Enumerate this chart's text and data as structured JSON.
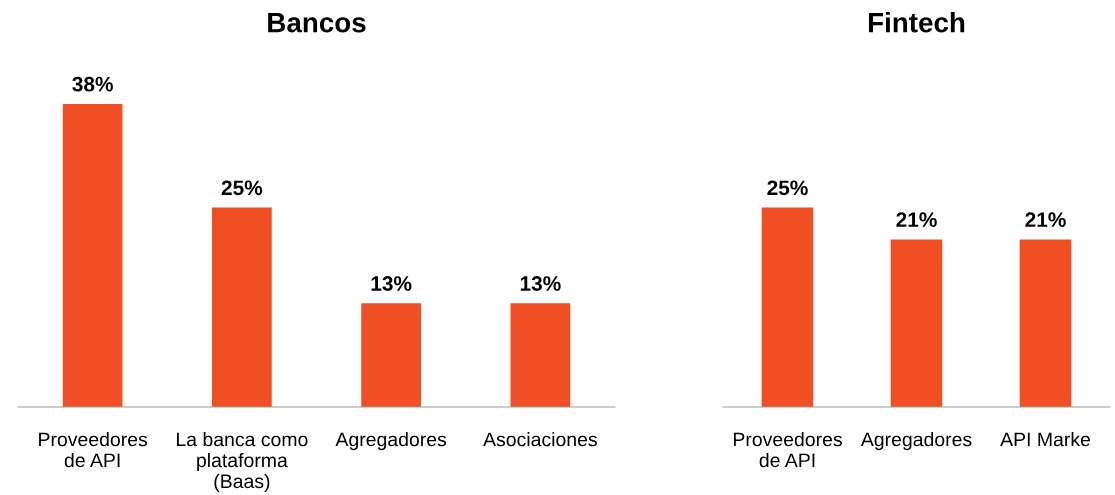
{
  "chart_data": [
    {
      "type": "bar",
      "title": "Bancos",
      "categories": [
        "Proveedores\nde API",
        "La banca como\nplataforma\n(Baas)",
        "Agregadores",
        "Asociaciones"
      ],
      "values": [
        38,
        25,
        13,
        13
      ],
      "value_labels": [
        "38%",
        "25%",
        "13%",
        "13%"
      ],
      "color": "#f04e23",
      "grid": false,
      "legend": false,
      "tick_labels": "x"
    },
    {
      "type": "bar",
      "title": "Fintech",
      "categories": [
        "Proveedores\nde API",
        "Agregadores",
        "API Marke"
      ],
      "values": [
        25,
        21,
        21
      ],
      "value_labels": [
        "25%",
        "21%",
        "21%"
      ],
      "color": "#f04e23",
      "grid": false,
      "legend": false,
      "tick_labels": "x"
    }
  ]
}
